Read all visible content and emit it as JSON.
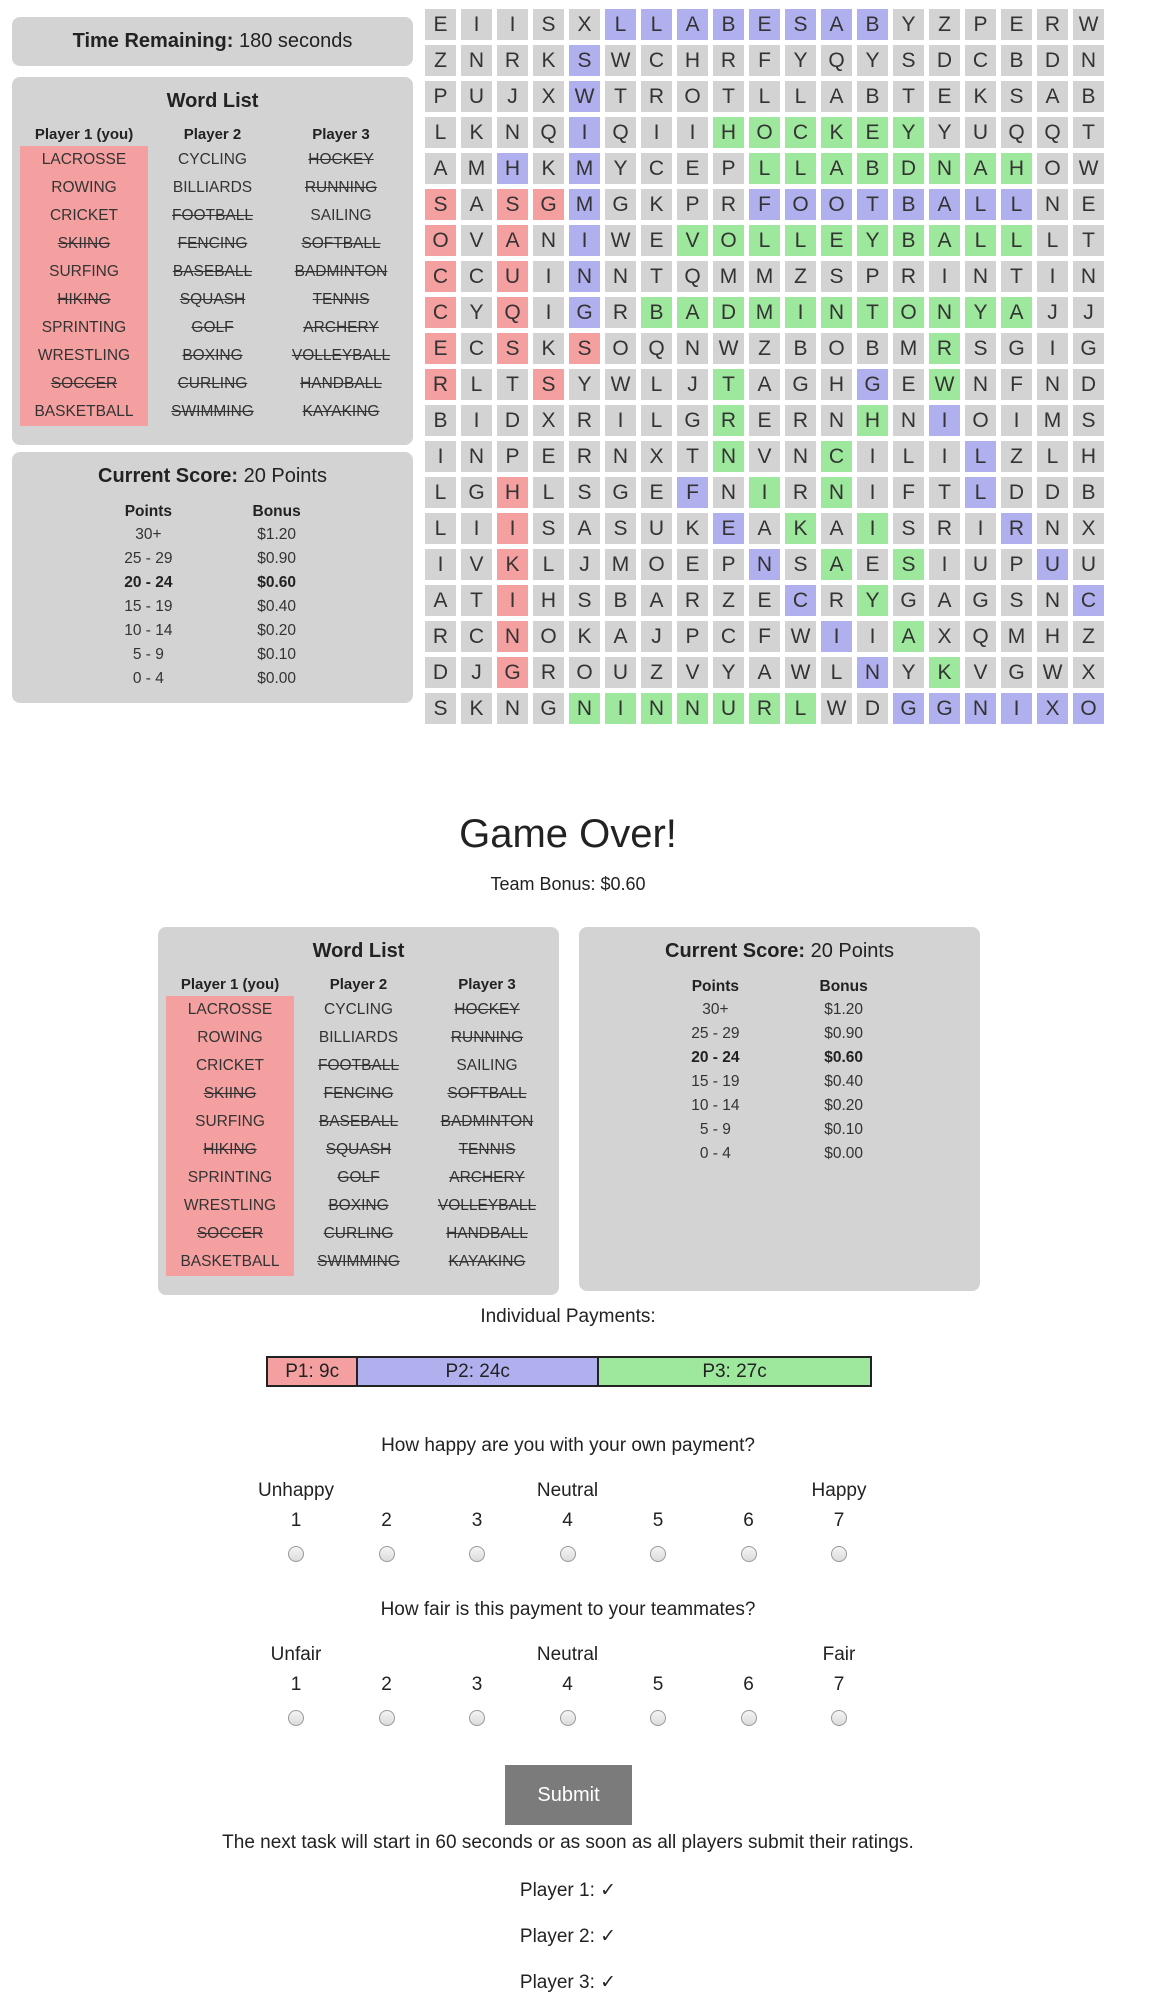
{
  "timer": {
    "label": "Time Remaining:",
    "value": "180 seconds"
  },
  "word_list": {
    "title": "Word List",
    "columns": [
      {
        "header": "Player 1 (you)",
        "words": [
          {
            "w": "LACROSSE",
            "found": false
          },
          {
            "w": "ROWING",
            "found": false
          },
          {
            "w": "CRICKET",
            "found": false
          },
          {
            "w": "SKIING",
            "found": true
          },
          {
            "w": "SURFING",
            "found": false
          },
          {
            "w": "HIKING",
            "found": true
          },
          {
            "w": "SPRINTING",
            "found": false
          },
          {
            "w": "WRESTLING",
            "found": false
          },
          {
            "w": "SOCCER",
            "found": true
          },
          {
            "w": "BASKETBALL",
            "found": false
          }
        ]
      },
      {
        "header": "Player 2",
        "words": [
          {
            "w": "CYCLING",
            "found": false
          },
          {
            "w": "BILLIARDS",
            "found": false
          },
          {
            "w": "FOOTBALL",
            "found": true
          },
          {
            "w": "FENCING",
            "found": true
          },
          {
            "w": "BASEBALL",
            "found": true
          },
          {
            "w": "SQUASH",
            "found": true
          },
          {
            "w": "GOLF",
            "found": true
          },
          {
            "w": "BOXING",
            "found": true
          },
          {
            "w": "CURLING",
            "found": true
          },
          {
            "w": "SWIMMING",
            "found": true
          }
        ]
      },
      {
        "header": "Player 3",
        "words": [
          {
            "w": "HOCKEY",
            "found": true
          },
          {
            "w": "RUNNING",
            "found": true
          },
          {
            "w": "SAILING",
            "found": false
          },
          {
            "w": "SOFTBALL",
            "found": true
          },
          {
            "w": "BADMINTON",
            "found": true
          },
          {
            "w": "TENNIS",
            "found": true
          },
          {
            "w": "ARCHERY",
            "found": true
          },
          {
            "w": "VOLLEYBALL",
            "found": true
          },
          {
            "w": "HANDBALL",
            "found": true
          },
          {
            "w": "KAYAKING",
            "found": true
          }
        ]
      }
    ]
  },
  "score": {
    "label": "Current Score:",
    "value": "20 Points",
    "headers": [
      "Points",
      "Bonus"
    ],
    "rows": [
      {
        "points": "30+",
        "bonus": "$1.20",
        "current": false
      },
      {
        "points": "25 - 29",
        "bonus": "$0.90",
        "current": false
      },
      {
        "points": "20 - 24",
        "bonus": "$0.60",
        "current": true
      },
      {
        "points": "15 - 19",
        "bonus": "$0.40",
        "current": false
      },
      {
        "points": "10 - 14",
        "bonus": "$0.20",
        "current": false
      },
      {
        "points": "5 - 9",
        "bonus": "$0.10",
        "current": false
      },
      {
        "points": "0 - 4",
        "bonus": "$0.00",
        "current": false
      }
    ]
  },
  "grid": {
    "rows": [
      "EIISXLLABESABYZPERWL",
      "ZNRKSWCHRFYQYSDCBDNS",
      "PUJXWTROTLLABTEKSABB",
      "LKNQIQIIHOCKEYYUQQTF",
      "AMHKMYCEPLLABDNAHOWL",
      "SASGMGKPRFOOTBALLNEO",
      "OVANIWEVOLLEYBALLLTG",
      "CCUINNTQMMZSPRINTING",
      "CYQIGRBADMINTONYAJJG",
      "ECSKSOQNWZBOBMRSGIGL",
      "RLTSYWLJTAGHGEWNFNDJ",
      "BIDXRILGRERNHNIOIMSS",
      "INPERNXTNVNCILILZLHO",
      "LGHLSGEFNIRNIFTLDDBF",
      "LIISASUKEAKAISRIRNXT",
      "IVKLJMOEPNSAESIUPUUB",
      "ATIHSBARZECRYGAGSNCA",
      "RCNOKAJPCFWIIAXQMHZL",
      "DJGROUZVYAWLNYKVGWXL",
      "SKNGNINNURLWDGGNIXOB"
    ],
    "colors": [
      "....._bbbbbbbb.......",
      "....b...............",
      "....b...............",
      "....b...gggggg.....b",
      "..b.b....gggggggg..b",
      "r.rrb....bbbbbbbb..b",
      "r.r.b..gggggggggg..b",
      "r.r.b...............",
      "r.r.b.ggggggggggg...",
      "r.r.r.........g.....",
      "r..r....g...b.g.....",
      "........g...g.b....g",
      "........g..g...b...g",
      "..r....b.g.g...b...g",
      "..r.....b.g.g...b..g",
      "..r......b.g.g...b.g",
      "..r.......b.g.....bg",
      "..r........b.g......",
      "..r.........b.g.....",
      "....ggggggg..bbbbbbb"
    ]
  },
  "game_over": {
    "title": "Game Over!",
    "team_bonus": "Team Bonus: $0.60"
  },
  "payments": {
    "label": "Individual Payments:",
    "segments": [
      {
        "label": "P1: 9c",
        "value": 9,
        "color": "#f4a0a0"
      },
      {
        "label": "P2: 24c",
        "value": 24,
        "color": "#b0b0ef"
      },
      {
        "label": "P3: 27c",
        "value": 27,
        "color": "#9ee89e"
      }
    ]
  },
  "q1": {
    "question": "How happy are you with your own payment?",
    "left": "Unhappy",
    "mid": "Neutral",
    "right": "Happy",
    "options": [
      "1",
      "2",
      "3",
      "4",
      "5",
      "6",
      "7"
    ]
  },
  "q2": {
    "question": "How fair is this payment to your teammates?",
    "left": "Unfair",
    "mid": "Neutral",
    "right": "Fair",
    "options": [
      "1",
      "2",
      "3",
      "4",
      "5",
      "6",
      "7"
    ]
  },
  "submit_label": "Submit",
  "next_task_text": "The next task will start in 60 seconds or as soon as all players submit their ratings.",
  "player_status": [
    "Player 1: ✓",
    "Player 2: ✓",
    "Player 3: ✓"
  ]
}
